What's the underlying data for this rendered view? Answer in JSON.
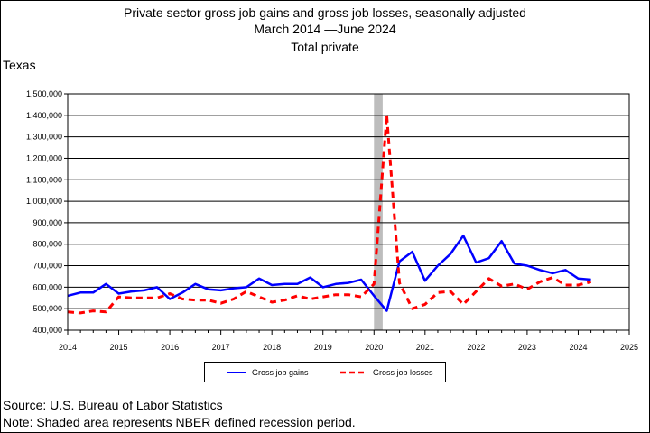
{
  "title": {
    "line1": "Private sector gross job gains and gross job losses, seasonally adjusted",
    "line2": "March 2014 —June 2024",
    "line3": "Total private"
  },
  "region": "Texas",
  "source": "Source: U.S. Bureau of Labor Statistics",
  "note": "Note: Shaded area represents NBER defined recession period.",
  "chart_data": {
    "type": "line",
    "title": "Private sector gross job gains and gross job losses, seasonally adjusted",
    "xlabel": "",
    "ylabel": "",
    "xlim": [
      2014,
      2025
    ],
    "ylim": [
      400000,
      1500000
    ],
    "grid": true,
    "legend_position": "bottom",
    "x_ticks": [
      "2014",
      "2015",
      "2016",
      "2017",
      "2018",
      "2019",
      "2020",
      "2021",
      "2022",
      "2023",
      "2024",
      "2025"
    ],
    "y_ticks": [
      "400,000",
      "500,000",
      "600,000",
      "700,000",
      "800,000",
      "900,000",
      "1,000,000",
      "1,100,000",
      "1,200,000",
      "1,300,000",
      "1,400,000",
      "1,500,000"
    ],
    "recession": {
      "start": 2020.0,
      "end": 2020.17
    },
    "x": [
      2014.0,
      2014.25,
      2014.5,
      2014.75,
      2015.0,
      2015.25,
      2015.5,
      2015.75,
      2016.0,
      2016.25,
      2016.5,
      2016.75,
      2017.0,
      2017.25,
      2017.5,
      2017.75,
      2018.0,
      2018.25,
      2018.5,
      2018.75,
      2019.0,
      2019.25,
      2019.5,
      2019.75,
      2020.0,
      2020.25,
      2020.5,
      2020.75,
      2021.0,
      2021.25,
      2021.5,
      2021.75,
      2022.0,
      2022.25,
      2022.5,
      2022.75,
      2023.0,
      2023.25,
      2023.5,
      2023.75,
      2024.0,
      2024.25
    ],
    "series": [
      {
        "name": "Gross job gains",
        "color": "#0000ff",
        "style": "solid",
        "values": [
          560000,
          575000,
          575000,
          615000,
          570000,
          580000,
          585000,
          600000,
          545000,
          575000,
          615000,
          590000,
          585000,
          595000,
          600000,
          640000,
          610000,
          615000,
          615000,
          645000,
          600000,
          615000,
          620000,
          635000,
          560000,
          490000,
          720000,
          765000,
          630000,
          700000,
          755000,
          840000,
          715000,
          735000,
          815000,
          710000,
          700000,
          680000,
          665000,
          680000,
          640000,
          635000
        ]
      },
      {
        "name": "Gross job losses",
        "color": "#ff0000",
        "style": "dashed",
        "values": [
          485000,
          480000,
          490000,
          485000,
          555000,
          550000,
          550000,
          550000,
          570000,
          545000,
          540000,
          540000,
          525000,
          545000,
          580000,
          555000,
          530000,
          540000,
          560000,
          545000,
          555000,
          565000,
          565000,
          555000,
          615000,
          1400000,
          620000,
          500000,
          520000,
          575000,
          580000,
          520000,
          580000,
          640000,
          605000,
          615000,
          590000,
          625000,
          645000,
          610000,
          610000,
          625000
        ]
      }
    ]
  }
}
